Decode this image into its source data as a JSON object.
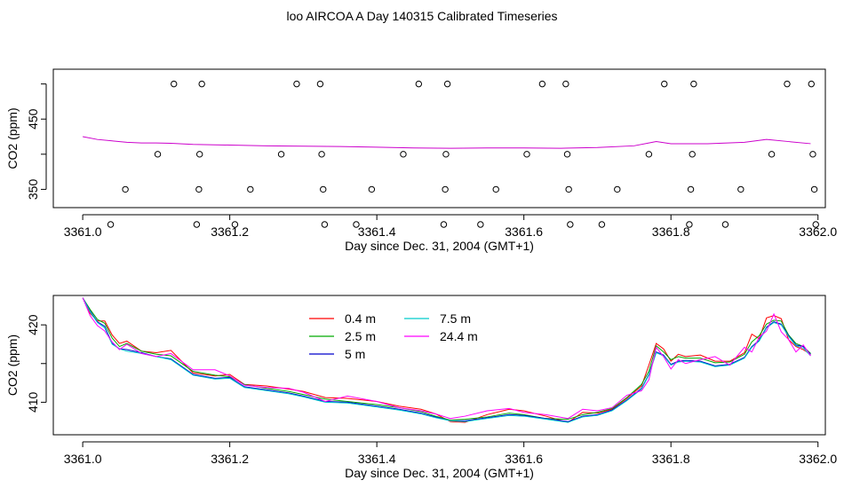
{
  "title": "loo AIRCOA A  Day 140315  Calibrated Timeseries",
  "chart_data": [
    {
      "type": "scatter",
      "xlabel": "Day since Dec. 31, 2004 (GMT+1)",
      "ylabel": "CO2 (ppm)",
      "xlim": [
        3360.96,
        3362.01
      ],
      "ylim": [
        324,
        521
      ],
      "xticks": [
        3361.0,
        3361.2,
        3361.4,
        3361.6,
        3361.8,
        3362.0
      ],
      "xtick_labels": [
        "3361.0",
        "3361.2",
        "3361.4",
        "3361.6",
        "3361.8",
        "3362.0"
      ],
      "yticks": [
        350,
        400,
        450,
        500
      ],
      "ytick_labels": [
        "350",
        "",
        "450",
        ""
      ],
      "grid": false,
      "line_series_color": "#cc00cc",
      "line": {
        "x": [
          3361.0,
          3361.02,
          3361.04,
          3361.06,
          3361.08,
          3361.1,
          3361.12,
          3361.15,
          3361.2,
          3361.25,
          3361.3,
          3361.35,
          3361.4,
          3361.45,
          3361.5,
          3361.55,
          3361.6,
          3361.65,
          3361.7,
          3361.75,
          3361.77,
          3361.78,
          3361.8,
          3361.85,
          3361.9,
          3361.93,
          3361.96,
          3361.99
        ],
        "y": [
          425,
          421,
          419,
          417,
          416,
          416,
          415.5,
          414,
          413,
          412,
          411.5,
          411,
          410,
          409,
          408.5,
          409,
          409,
          408.5,
          409.5,
          412,
          416,
          418,
          415,
          415,
          417,
          421,
          418,
          415
        ]
      },
      "points": [
        {
          "x": 3361.038,
          "y": 300
        },
        {
          "x": 3361.058,
          "y": 350
        },
        {
          "x": 3361.102,
          "y": 400
        },
        {
          "x": 3361.124,
          "y": 500
        },
        {
          "x": 3361.155,
          "y": 300
        },
        {
          "x": 3361.158,
          "y": 350
        },
        {
          "x": 3361.159,
          "y": 400
        },
        {
          "x": 3361.162,
          "y": 500
        },
        {
          "x": 3361.207,
          "y": 300
        },
        {
          "x": 3361.228,
          "y": 350
        },
        {
          "x": 3361.27,
          "y": 400
        },
        {
          "x": 3361.291,
          "y": 500
        },
        {
          "x": 3361.323,
          "y": 500
        },
        {
          "x": 3361.325,
          "y": 400
        },
        {
          "x": 3361.327,
          "y": 350
        },
        {
          "x": 3361.329,
          "y": 300
        },
        {
          "x": 3361.372,
          "y": 300
        },
        {
          "x": 3361.393,
          "y": 350
        },
        {
          "x": 3361.436,
          "y": 400
        },
        {
          "x": 3361.457,
          "y": 500
        },
        {
          "x": 3361.491,
          "y": 300
        },
        {
          "x": 3361.493,
          "y": 350
        },
        {
          "x": 3361.494,
          "y": 400
        },
        {
          "x": 3361.496,
          "y": 500
        },
        {
          "x": 3361.541,
          "y": 300
        },
        {
          "x": 3361.562,
          "y": 350
        },
        {
          "x": 3361.604,
          "y": 400
        },
        {
          "x": 3361.625,
          "y": 500
        },
        {
          "x": 3361.657,
          "y": 500
        },
        {
          "x": 3361.659,
          "y": 400
        },
        {
          "x": 3361.661,
          "y": 350
        },
        {
          "x": 3361.663,
          "y": 300
        },
        {
          "x": 3361.706,
          "y": 300
        },
        {
          "x": 3361.727,
          "y": 350
        },
        {
          "x": 3361.77,
          "y": 400
        },
        {
          "x": 3361.791,
          "y": 500
        },
        {
          "x": 3361.825,
          "y": 300
        },
        {
          "x": 3361.827,
          "y": 350
        },
        {
          "x": 3361.829,
          "y": 400
        },
        {
          "x": 3361.831,
          "y": 500
        },
        {
          "x": 3361.874,
          "y": 300
        },
        {
          "x": 3361.895,
          "y": 350
        },
        {
          "x": 3361.937,
          "y": 400
        },
        {
          "x": 3361.958,
          "y": 500
        },
        {
          "x": 3361.991,
          "y": 500
        },
        {
          "x": 3361.993,
          "y": 400
        },
        {
          "x": 3361.995,
          "y": 350
        },
        {
          "x": 3361.997,
          "y": 300
        }
      ]
    },
    {
      "type": "line",
      "xlabel": "Day since Dec. 31, 2004 (GMT+1)",
      "ylabel": "CO2 (ppm)",
      "xlim": [
        3360.96,
        3362.01
      ],
      "ylim": [
        405.8,
        423.8
      ],
      "xticks": [
        3361.0,
        3361.2,
        3361.4,
        3361.6,
        3361.8,
        3362.0
      ],
      "xtick_labels": [
        "3361.0",
        "3361.2",
        "3361.4",
        "3361.6",
        "3361.8",
        "3362.0"
      ],
      "yticks": [
        410,
        415,
        420
      ],
      "ytick_labels": [
        "410",
        "",
        "420"
      ],
      "grid": false,
      "legend_placement": "top-center",
      "x": [
        3361.0,
        3361.01,
        3361.02,
        3361.03,
        3361.04,
        3361.05,
        3361.06,
        3361.08,
        3361.1,
        3361.12,
        3361.15,
        3361.18,
        3361.2,
        3361.22,
        3361.25,
        3361.28,
        3361.3,
        3361.33,
        3361.36,
        3361.4,
        3361.43,
        3361.46,
        3361.48,
        3361.5,
        3361.52,
        3361.55,
        3361.58,
        3361.6,
        3361.63,
        3361.66,
        3361.68,
        3361.7,
        3361.72,
        3361.74,
        3361.76,
        3361.77,
        3361.78,
        3361.79,
        3361.8,
        3361.81,
        3361.82,
        3361.84,
        3361.86,
        3361.88,
        3361.9,
        3361.91,
        3361.92,
        3361.93,
        3361.94,
        3361.95,
        3361.96,
        3361.97,
        3361.98,
        3361.99
      ],
      "series": [
        {
          "name": "0.4 m",
          "color": "#ff0000",
          "y": [
            423.5,
            421.5,
            420.5,
            420.5,
            418.7,
            417.6,
            417.9,
            416.6,
            416.4,
            416.7,
            413.8,
            413.4,
            413.6,
            412.3,
            412.1,
            411.7,
            411.4,
            410.6,
            410.5,
            410.1,
            409.5,
            409.1,
            408.5,
            407.5,
            407.4,
            408.4,
            409.1,
            408.9,
            408.2,
            407.4,
            408.7,
            408.6,
            409.1,
            410.5,
            412.1,
            414.8,
            417.6,
            416.9,
            415.3,
            416.2,
            415.9,
            416.1,
            415.3,
            415.3,
            416.4,
            418.8,
            418.2,
            420.9,
            421.2,
            420.8,
            418.1,
            417.2,
            416.8,
            416.2
          ]
        },
        {
          "name": "2.5 m",
          "color": "#00aa00",
          "y": [
            423.5,
            422.0,
            420.7,
            420.2,
            418.3,
            417.2,
            417.6,
            416.6,
            416.2,
            416.0,
            414.0,
            413.5,
            413.3,
            412.3,
            411.8,
            411.4,
            411.0,
            410.4,
            410.1,
            409.7,
            409.3,
            408.8,
            408.2,
            407.7,
            407.8,
            408.1,
            408.6,
            408.4,
            407.9,
            407.8,
            408.4,
            408.7,
            409.2,
            410.6,
            412.3,
            414.0,
            417.3,
            416.5,
            415.5,
            415.9,
            415.7,
            415.7,
            415.1,
            415.2,
            416.2,
            417.8,
            418.6,
            420.1,
            420.6,
            420.5,
            418.7,
            417.6,
            417.2,
            416.3
          ]
        },
        {
          "name": "5 m",
          "color": "#0000cc",
          "y": [
            423.5,
            421.8,
            420.4,
            419.8,
            417.6,
            416.9,
            416.8,
            416.4,
            415.9,
            415.6,
            413.6,
            413.1,
            413.2,
            412.0,
            411.6,
            411.2,
            410.8,
            410.1,
            410.0,
            409.5,
            409.1,
            408.6,
            408.1,
            407.6,
            407.6,
            408.0,
            408.4,
            408.3,
            407.9,
            407.5,
            408.2,
            408.4,
            409.0,
            410.3,
            411.8,
            413.6,
            416.5,
            416.1,
            414.9,
            415.3,
            415.4,
            415.3,
            414.7,
            414.9,
            415.8,
            417.2,
            418.0,
            419.7,
            420.4,
            420.1,
            418.6,
            417.4,
            417.2,
            416.2
          ]
        },
        {
          "name": "7.5 m",
          "color": "#00cccc",
          "y": [
            423.5,
            421.7,
            420.3,
            419.6,
            417.5,
            416.9,
            416.6,
            416.3,
            415.9,
            415.5,
            413.5,
            413.0,
            413.1,
            411.9,
            411.5,
            411.1,
            410.7,
            410.0,
            409.9,
            409.4,
            409.0,
            408.5,
            408.0,
            407.6,
            407.5,
            407.9,
            408.3,
            408.2,
            407.8,
            407.4,
            408.1,
            408.3,
            408.9,
            410.2,
            411.7,
            413.5,
            416.4,
            416.0,
            414.8,
            415.2,
            415.3,
            415.2,
            414.6,
            414.8,
            415.7,
            417.1,
            417.9,
            419.6,
            420.3,
            420.0,
            418.5,
            417.3,
            417.0,
            416.0
          ]
        },
        {
          "name": "24.4 m",
          "color": "#ff00ff",
          "y": [
            423.5,
            421.2,
            419.9,
            419.2,
            417.8,
            416.8,
            417.5,
            416.3,
            415.9,
            416.3,
            414.2,
            414.2,
            413.4,
            412.2,
            411.9,
            411.8,
            411.3,
            410.1,
            410.8,
            410.1,
            409.3,
            408.9,
            408.5,
            407.9,
            408.2,
            408.9,
            409.2,
            408.7,
            408.4,
            407.9,
            409.1,
            408.9,
            409.3,
            410.9,
            411.5,
            412.9,
            417.1,
            415.9,
            414.3,
            415.5,
            415.0,
            415.5,
            415.9,
            414.8,
            417.1,
            416.5,
            418.4,
            419.2,
            421.4,
            419.1,
            418.1,
            416.5,
            417.4,
            416.0
          ]
        }
      ]
    }
  ]
}
